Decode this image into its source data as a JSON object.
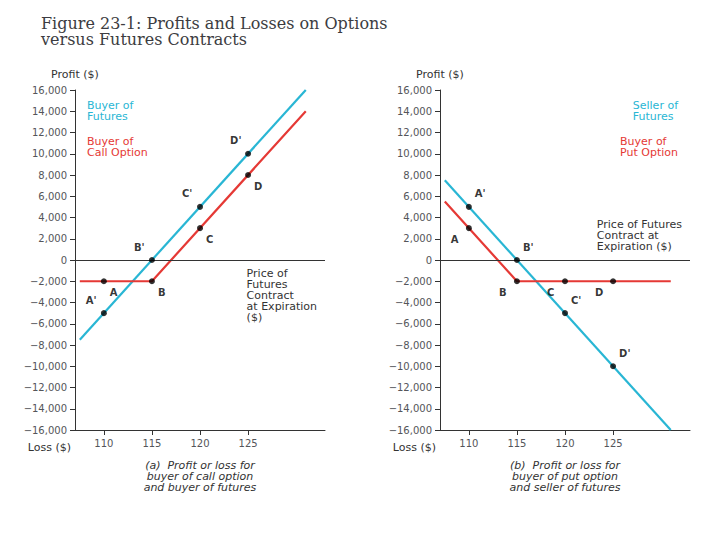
{
  "title": "Figure 23-1: Profits and Losses on Options\nversus Futures Contracts",
  "chart_data": [
    {
      "type": "line",
      "subtitle": "(a)  Profit or loss for\nbuyer of call option\nand buyer of futures",
      "xlabel": "Price of\nFutures\nContract\nat Expiration\n($)",
      "annotations": [
        "Profit ($)",
        "Loss ($)"
      ],
      "xlim": [
        107,
        133
      ],
      "xticks": [
        110,
        115,
        120,
        125
      ],
      "ylim": [
        -16000,
        16000
      ],
      "yticks": [
        {
          "value": -16000,
          "label": "−16,000"
        },
        {
          "value": -14000,
          "label": "−14,000"
        },
        {
          "value": -12000,
          "label": "−12,000"
        },
        {
          "value": -10000,
          "label": "−10,000"
        },
        {
          "value": -8000,
          "label": "−8,000"
        },
        {
          "value": -6000,
          "label": "−6,000"
        },
        {
          "value": -4000,
          "label": "−4,000"
        },
        {
          "value": -2000,
          "label": "−2,000"
        },
        0,
        {
          "value": 2000,
          "label": "2,000"
        },
        {
          "value": 4000,
          "label": "4,000"
        },
        {
          "value": 6000,
          "label": "6,000"
        },
        {
          "value": 8000,
          "label": "8,000"
        },
        {
          "value": 10000,
          "label": "10,000"
        },
        {
          "value": 12000,
          "label": "12,000"
        },
        {
          "value": 14000,
          "label": "14,000"
        },
        {
          "value": 16000,
          "label": "16,000"
        }
      ],
      "grid": false,
      "series": [
        {
          "name": "Buyer of\nFutures",
          "type": "line",
          "color": "#29b6d4",
          "x": [
            107.5,
            131
          ],
          "values": [
            -7500,
            16000
          ]
        },
        {
          "name": "Buyer of\nCall Option",
          "type": "line",
          "color": "#e53935",
          "x": [
            107.5,
            115,
            131
          ],
          "values": [
            -2000,
            -2000,
            14000
          ]
        },
        {
          "type": "scatter",
          "color": "#000000",
          "x": [
            110,
            115,
            120,
            125
          ],
          "values": [
            -5000,
            0,
            5000,
            10000
          ],
          "labels": [
            "A'",
            "B'",
            "C'",
            "D'"
          ]
        },
        {
          "type": "scatter",
          "color": "#000000",
          "x": [
            110,
            115,
            120,
            125
          ],
          "values": [
            -2000,
            -2000,
            3000,
            8000
          ],
          "labels": [
            "A",
            "B",
            "C",
            "D"
          ]
        }
      ]
    },
    {
      "type": "line",
      "subtitle": "(b)  Profit or loss for\nbuyer of put option\nand seller of futures",
      "xlabel": "Price of Futures\nContract at\nExpiration ($)",
      "annotations": [
        "Profit ($)",
        "Loss ($)"
      ],
      "xlim": [
        107,
        133
      ],
      "xticks": [
        110,
        115,
        120,
        125
      ],
      "ylim": [
        -16000,
        16000
      ],
      "yticks": [
        {
          "value": -16000,
          "label": "−16,000"
        },
        {
          "value": -14000,
          "label": "−14,000"
        },
        {
          "value": -12000,
          "label": "−12,000"
        },
        {
          "value": -10000,
          "label": "−10,000"
        },
        {
          "value": -8000,
          "label": "−8,000"
        },
        {
          "value": -6000,
          "label": "−6,000"
        },
        {
          "value": -4000,
          "label": "−4,000"
        },
        {
          "value": -2000,
          "label": "−2,000"
        },
        0,
        {
          "value": 2000,
          "label": "2,000"
        },
        {
          "value": 4000,
          "label": "4,000"
        },
        {
          "value": 6000,
          "label": "6,000"
        },
        {
          "value": 8000,
          "label": "8,000"
        },
        {
          "value": 10000,
          "label": "10,000"
        },
        {
          "value": 12000,
          "label": "12,000"
        },
        {
          "value": 14000,
          "label": "14,000"
        },
        {
          "value": 16000,
          "label": "16,000"
        }
      ],
      "grid": false,
      "series": [
        {
          "name": "Seller of\nFutures",
          "type": "line",
          "color": "#29b6d4",
          "x": [
            107.5,
            131
          ],
          "values": [
            7500,
            -16000
          ]
        },
        {
          "name": "Buyer of\nPut Option",
          "type": "line",
          "color": "#e53935",
          "x": [
            107.5,
            115,
            131
          ],
          "values": [
            5500,
            -2000,
            -2000
          ]
        },
        {
          "type": "scatter",
          "color": "#000000",
          "x": [
            110,
            115,
            120,
            125
          ],
          "values": [
            5000,
            0,
            -5000,
            -10000
          ],
          "labels": [
            "A'",
            "B'",
            "C'",
            "D'"
          ]
        },
        {
          "type": "scatter",
          "color": "#000000",
          "x": [
            110,
            115,
            120,
            125
          ],
          "values": [
            3000,
            -2000,
            -2000,
            -2000
          ],
          "labels": [
            "A",
            "B",
            "C",
            "D"
          ]
        }
      ]
    }
  ]
}
